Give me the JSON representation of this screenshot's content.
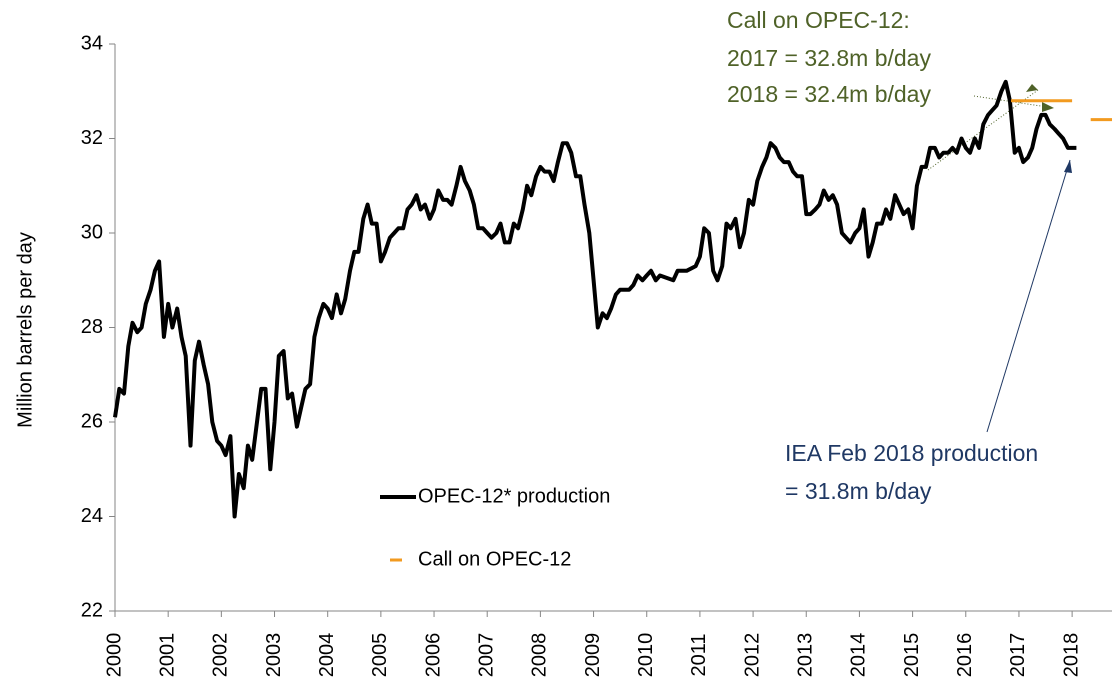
{
  "chart_data": {
    "type": "line",
    "y_label": "Million barrels per day",
    "legend": "lower center",
    "annotations": [
      {
        "text": "Call on OPEC-12:",
        "color": "#4f6228"
      },
      {
        "text": "2017 = 32.8m b/day",
        "color": "#4f6228"
      },
      {
        "text": "2018 = 32.4m b/day",
        "color": "#4f6228"
      },
      {
        "text": "IEA Feb 2018 production",
        "color": "#1f3864"
      },
      {
        "text": "= 31.8m b/day",
        "color": "#1f3864"
      }
    ],
    "xlim": [
      2000,
      2018.75
    ],
    "xticks": [
      2000,
      2001,
      2002,
      2003,
      2004,
      2005,
      2006,
      2007,
      2008,
      2009,
      2010,
      2011,
      2012,
      2013,
      2014,
      2015,
      2016,
      2017,
      2018
    ],
    "ylim": [
      22,
      34
    ],
    "yticks": [
      22,
      24,
      26,
      28,
      30,
      32,
      34
    ],
    "series": [
      {
        "name": "OPEC-12* production",
        "color": "#000000",
        "x": [
          2000.0,
          2000.08,
          2000.17,
          2000.25,
          2000.33,
          2000.42,
          2000.5,
          2000.58,
          2000.67,
          2000.75,
          2000.83,
          2000.92,
          2001.0,
          2001.08,
          2001.17,
          2001.25,
          2001.33,
          2001.42,
          2001.5,
          2001.58,
          2001.67,
          2001.75,
          2001.83,
          2001.92,
          2002.0,
          2002.08,
          2002.17,
          2002.25,
          2002.33,
          2002.42,
          2002.5,
          2002.58,
          2002.67,
          2002.75,
          2002.83,
          2002.92,
          2003.0,
          2003.08,
          2003.17,
          2003.25,
          2003.33,
          2003.42,
          2003.5,
          2003.58,
          2003.67,
          2003.75,
          2003.83,
          2003.92,
          2004.0,
          2004.08,
          2004.17,
          2004.25,
          2004.33,
          2004.42,
          2004.5,
          2004.58,
          2004.67,
          2004.75,
          2004.83,
          2004.92,
          2005.0,
          2005.08,
          2005.17,
          2005.25,
          2005.33,
          2005.42,
          2005.5,
          2005.58,
          2005.67,
          2005.75,
          2005.83,
          2005.92,
          2006.0,
          2006.08,
          2006.17,
          2006.25,
          2006.33,
          2006.42,
          2006.5,
          2006.58,
          2006.67,
          2006.75,
          2006.83,
          2006.92,
          2007.0,
          2007.08,
          2007.17,
          2007.25,
          2007.33,
          2007.42,
          2007.5,
          2007.58,
          2007.67,
          2007.75,
          2007.83,
          2007.92,
          2008.0,
          2008.08,
          2008.17,
          2008.25,
          2008.33,
          2008.42,
          2008.5,
          2008.58,
          2008.67,
          2008.75,
          2008.83,
          2008.92,
          2009.0,
          2009.08,
          2009.17,
          2009.25,
          2009.33,
          2009.42,
          2009.5,
          2009.67,
          2009.75,
          2009.83,
          2009.92,
          2010.0,
          2010.08,
          2010.17,
          2010.25,
          2010.5,
          2010.58,
          2010.75,
          2010.92,
          2011.0,
          2011.08,
          2011.17,
          2011.25,
          2011.33,
          2011.42,
          2011.5,
          2011.58,
          2011.67,
          2011.75,
          2011.83,
          2011.92,
          2012.0,
          2012.08,
          2012.17,
          2012.25,
          2012.33,
          2012.42,
          2012.5,
          2012.58,
          2012.67,
          2012.75,
          2012.83,
          2012.92,
          2013.0,
          2013.08,
          2013.17,
          2013.25,
          2013.33,
          2013.42,
          2013.5,
          2013.58,
          2013.67,
          2013.75,
          2013.83,
          2013.92,
          2014.0,
          2014.08,
          2014.17,
          2014.25,
          2014.33,
          2014.42,
          2014.5,
          2014.58,
          2014.67,
          2014.75,
          2014.83,
          2014.92,
          2015.0,
          2015.08,
          2015.17,
          2015.25,
          2015.33,
          2015.42,
          2015.5,
          2015.58,
          2015.67,
          2015.75,
          2015.83,
          2015.92,
          2016.0,
          2016.08,
          2016.17,
          2016.25,
          2016.33,
          2016.42,
          2016.5,
          2016.58,
          2016.67,
          2016.75,
          2016.83,
          2016.92,
          2017.0,
          2017.08,
          2017.17,
          2017.25,
          2017.33,
          2017.42,
          2017.5,
          2017.58,
          2017.67,
          2017.75,
          2017.83,
          2017.92,
          2018.0,
          2018.08
        ],
        "values": [
          26.1,
          26.7,
          26.6,
          27.6,
          28.1,
          27.9,
          28.0,
          28.5,
          28.8,
          29.2,
          29.4,
          27.8,
          28.5,
          28.0,
          28.4,
          27.8,
          27.4,
          25.5,
          27.3,
          27.7,
          27.2,
          26.8,
          26.0,
          25.6,
          25.5,
          25.3,
          25.7,
          24.0,
          24.9,
          24.6,
          25.5,
          25.2,
          26.0,
          26.7,
          26.7,
          25.0,
          26.0,
          27.4,
          27.5,
          26.5,
          26.6,
          25.9,
          26.3,
          26.7,
          26.8,
          27.8,
          28.2,
          28.5,
          28.4,
          28.2,
          28.7,
          28.3,
          28.6,
          29.2,
          29.6,
          29.6,
          30.3,
          30.6,
          30.2,
          30.2,
          29.4,
          29.6,
          29.9,
          30.0,
          30.1,
          30.1,
          30.5,
          30.6,
          30.8,
          30.5,
          30.6,
          30.3,
          30.5,
          30.9,
          30.7,
          30.7,
          30.6,
          31.0,
          31.4,
          31.1,
          30.9,
          30.6,
          30.1,
          30.1,
          30.0,
          29.9,
          30.0,
          30.2,
          29.8,
          29.8,
          30.2,
          30.1,
          30.5,
          31.0,
          30.8,
          31.2,
          31.4,
          31.3,
          31.3,
          31.1,
          31.5,
          31.9,
          31.9,
          31.7,
          31.2,
          31.2,
          30.6,
          30.0,
          29.0,
          28.0,
          28.3,
          28.2,
          28.4,
          28.7,
          28.8,
          28.8,
          28.9,
          29.1,
          29.0,
          29.1,
          29.2,
          29.0,
          29.1,
          29.0,
          29.2,
          29.2,
          29.3,
          29.5,
          30.1,
          30.0,
          29.2,
          29.0,
          29.3,
          30.2,
          30.1,
          30.3,
          29.7,
          30.0,
          30.7,
          30.6,
          31.1,
          31.4,
          31.6,
          31.9,
          31.8,
          31.6,
          31.5,
          31.5,
          31.3,
          31.2,
          31.2,
          30.4,
          30.4,
          30.5,
          30.6,
          30.9,
          30.7,
          30.8,
          30.6,
          30.0,
          29.9,
          29.8,
          30.0,
          30.1,
          30.5,
          29.5,
          29.8,
          30.2,
          30.2,
          30.5,
          30.3,
          30.8,
          30.6,
          30.4,
          30.5,
          30.1,
          31.0,
          31.4,
          31.4,
          31.8,
          31.8,
          31.6,
          31.7,
          31.7,
          31.8,
          31.7,
          32.0,
          31.8,
          31.7,
          32.0,
          31.8,
          32.3,
          32.5,
          32.6,
          32.7,
          33.0,
          33.2,
          32.8,
          31.7,
          31.8,
          31.5,
          31.6,
          31.8,
          32.2,
          32.5,
          32.5,
          32.3,
          32.2,
          32.1,
          32.0,
          31.8,
          31.8,
          31.8
        ]
      },
      {
        "name": "Call on OPEC-12",
        "color": "#f29a1f",
        "x": [
          2016.85,
          2018.0,
          2018.01,
          2018.35,
          2018.75
        ],
        "values": [
          32.8,
          32.8,
          null,
          32.4,
          32.4
        ]
      }
    ]
  }
}
